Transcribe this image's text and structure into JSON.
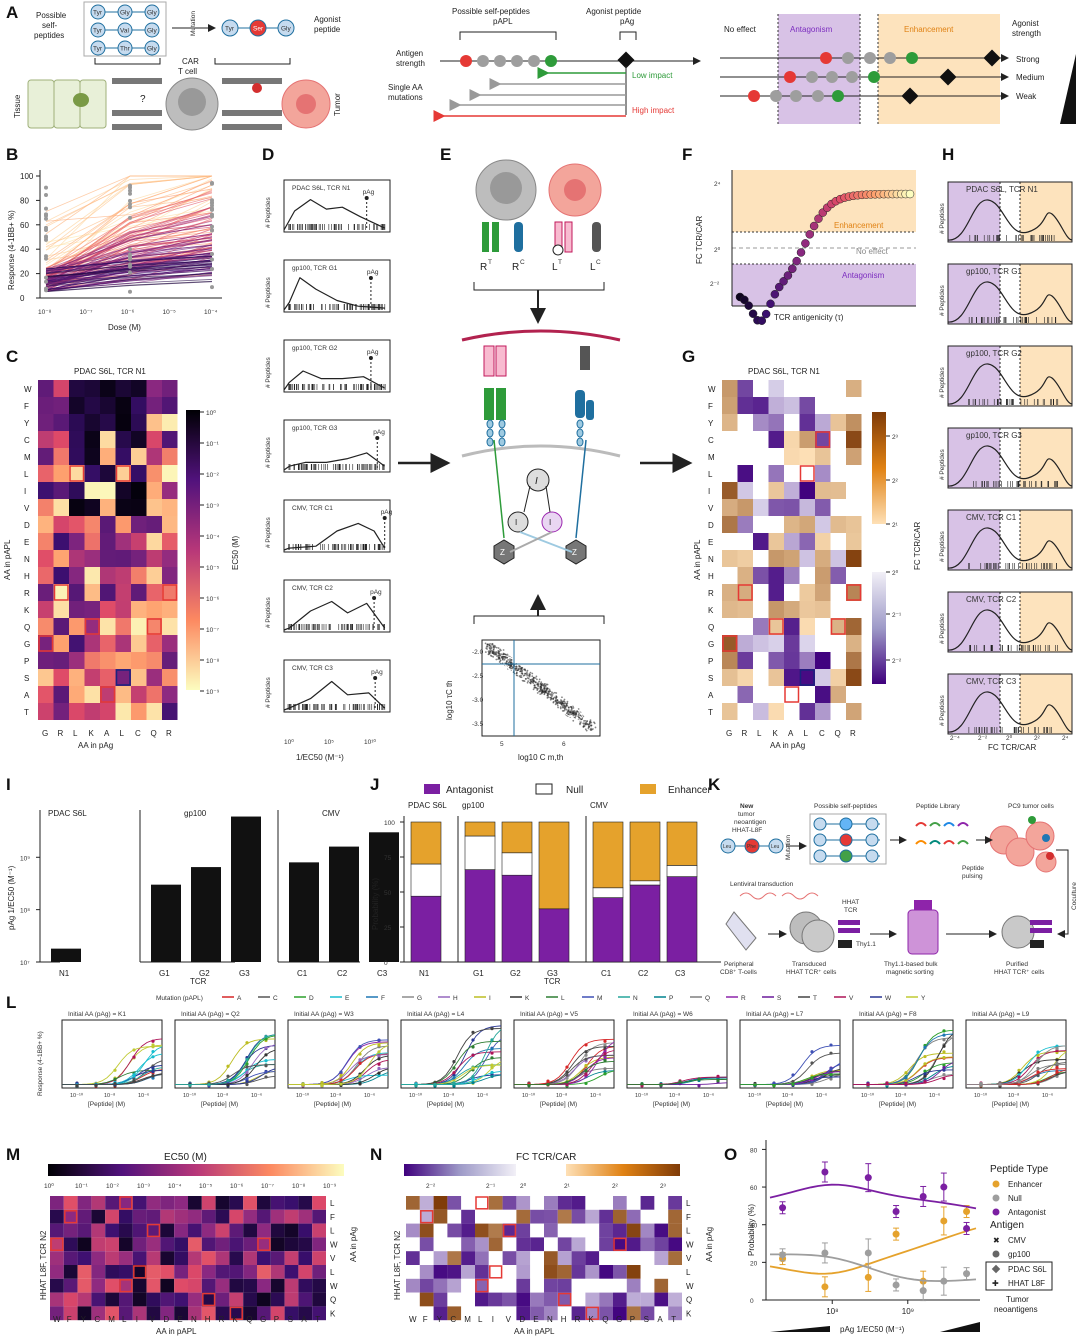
{
  "panels": {
    "A": "A",
    "B": "B",
    "C": "C",
    "D": "D",
    "E": "E",
    "F": "F",
    "G": "G",
    "H": "H",
    "I": "I",
    "J": "J",
    "K": "K",
    "L": "L",
    "M": "M",
    "N": "N",
    "O": "O"
  },
  "panelA": {
    "possible_self": "Possible",
    "possible_self2": "self-",
    "possible_self3": "peptides",
    "mutation": "Mutation",
    "agonist_peptide": "Agonist",
    "agonist_peptide2": "peptide",
    "car_tcell": "CAR",
    "car_tcell2": "T cell",
    "tissue": "Tissue",
    "tumor": "Tumor",
    "possible_self_papl": "Possible self-peptides",
    "papl": "pAPL",
    "agonist_pag": "Agonist peptide",
    "pag": "pAg",
    "antigen_strength": "Antigen",
    "antigen_strength2": "strength",
    "single_aa": "Single AA",
    "single_aa2": "mutations",
    "low_impact": "Low impact",
    "high_impact": "High impact",
    "no_effect": "No effect",
    "antagonism": "Antagonism",
    "enhancement": "Enhancement",
    "agonist_strength": "Agonist",
    "agonist_strength2": "strength",
    "strong": "Strong",
    "medium": "Medium",
    "weak": "Weak",
    "aa_top": [
      "Tyr",
      "Gly",
      "Gly"
    ],
    "aa_mid": [
      "Tyr",
      "Val",
      "Gly"
    ],
    "aa_bot": [
      "Tyr",
      "Thr",
      "Gly"
    ],
    "aa_ag": [
      "Tyr",
      "Ser",
      "Gly"
    ]
  },
  "panelB": {
    "ylabel": "Response (4-1BB+ %)",
    "xlabel": "Dose (M)",
    "yticks": [
      "0",
      "20",
      "40",
      "60",
      "80",
      "100"
    ],
    "xticks": [
      "10⁻⁸",
      "10⁻⁷",
      "10⁻⁶",
      "10⁻⁵",
      "10⁻⁴"
    ]
  },
  "panelC": {
    "title": "PDAC S6L, TCR N1",
    "ylabel": "AA in pAPL",
    "xlabel": "AA in pAg",
    "rows": [
      "W",
      "F",
      "Y",
      "C",
      "M",
      "L",
      "I",
      "V",
      "D",
      "E",
      "N",
      "H",
      "R",
      "K",
      "Q",
      "G",
      "P",
      "S",
      "A",
      "T"
    ],
    "cols": [
      "G",
      "R",
      "L",
      "K",
      "A",
      "L",
      "C",
      "Q",
      "R"
    ],
    "cbar_label": "EC50 (M)",
    "cbar_ticks": [
      "10⁰",
      "10⁻¹",
      "10⁻²",
      "10⁻³",
      "10⁻⁴",
      "10⁻⁵",
      "10⁻⁶",
      "10⁻⁷",
      "10⁻⁸",
      "10⁻⁹"
    ]
  },
  "panelD": {
    "ylabel": "# Peptides",
    "xlabel": "1/EC50 (M⁻¹)",
    "pag": "pAg",
    "xticks": [
      "10⁰",
      "10⁵",
      "10¹⁰"
    ],
    "titles": [
      "PDAC S6L, TCR N1",
      "gp100, TCR G1",
      "gp100, TCR G2",
      "gp100, TCR G3",
      "CMV, TCR C1",
      "CMV, TCR C2",
      "CMV, TCR C3"
    ]
  },
  "panelE": {
    "RT": "R",
    "RC": "R",
    "LT": "L",
    "LC": "L",
    "supT": "T",
    "supC": "C",
    "I": "I",
    "Z": "Z",
    "ylabel": "log10 τC th",
    "xlabel": "log10 C m,th",
    "yticks": [
      "-2.0",
      "-2.5",
      "-3.0",
      "-3.5"
    ],
    "xticks": [
      "5",
      "6"
    ]
  },
  "panelF": {
    "ylabel": "FC TCR/CAR",
    "xlabel": "TCR antigenicity (τ)",
    "enhancement": "Enhancement",
    "no_effect": "No effect",
    "antagonism": "Antagonism",
    "yticks": [
      "2⁴",
      "2⁰",
      "2⁻²"
    ]
  },
  "panelG": {
    "title": "PDAC S6L, TCR N1",
    "ylabel": "AA in pAPL",
    "xlabel": "AA in pAg",
    "cbar_label": "FC TCR/CAR",
    "cbar_ticks": [
      "2³",
      "2²",
      "2¹",
      "2⁰",
      "2⁻¹",
      "2⁻²"
    ]
  },
  "panelH": {
    "ylabel": "# Peptides",
    "xlabel": "FC TCR/CAR",
    "xticks": [
      "2⁻⁴",
      "2⁻²",
      "2⁰",
      "2²",
      "2⁴"
    ]
  },
  "panelI": {
    "ylabel": "pAg 1/EC50 (M⁻¹)",
    "xlabel": "TCR",
    "groups": [
      "PDAC S6L",
      "gp100",
      "CMV"
    ],
    "yticks": [
      "10⁷",
      "10⁸",
      "10⁹"
    ]
  },
  "panelJ": {
    "ylabel": "Probability (%)",
    "xlabel": "TCR",
    "legend": [
      "Antagonist",
      "Null",
      "Enhancer"
    ],
    "yticks": [
      "0",
      "25",
      "50",
      "75",
      "100"
    ]
  },
  "panelK": {
    "new_tumor": "New",
    "new_tumor2": "tumor",
    "new_tumor3": "neoantigen",
    "new_tumor4": "HHAT-L8F",
    "possible": "Possible self-peptides",
    "library": "Peptide Library",
    "pc9": "PC9 tumor cells",
    "mutation": "Mutation",
    "pulsing": "Peptide",
    "pulsing2": "pulsing",
    "lenti": "Lentiviral transduction",
    "coculture": "Coculture",
    "pbmc": "Peripheral",
    "pbmc2": "CD8⁺ T-cells",
    "transduced": "Transduced",
    "transduced2": "HHAT TCR⁺ cells",
    "sorting": "Thy1.1-based bulk",
    "sorting2": "magnetic sorting",
    "purified": "Purified",
    "purified2": "HHAT TCR⁺ cells",
    "hhat_tcr": "HHAT",
    "hhat_tcr2": "TCR",
    "thy": "Thy1.1"
  },
  "panelL": {
    "legend_title": "Mutation (pAPL)",
    "legend": [
      "A",
      "C",
      "D",
      "E",
      "F",
      "G",
      "H",
      "I",
      "K",
      "L",
      "M",
      "N",
      "P",
      "Q",
      "R",
      "S",
      "T",
      "V",
      "W",
      "Y"
    ],
    "legend_colors": [
      "#d62728",
      "#555555",
      "#2ca02c",
      "#17becf",
      "#1f77b4",
      "#8c8c8c",
      "#9467bd",
      "#bcbd22",
      "#333333",
      "#2e7d32",
      "#3f51b5",
      "#26a69a",
      "#00838f",
      "#7f7f7f",
      "#8e24aa",
      "#6a1b9a",
      "#444444",
      "#ad1457",
      "#283593",
      "#c0ca33"
    ],
    "titles": [
      "Initial AA (pAg) = K1",
      "Initial AA (pAg) = Q2",
      "Initial AA (pAg) = W3",
      "Initial AA (pAg) = L4",
      "Initial AA (pAg) = V5",
      "Initial AA (pAg) = W6",
      "Initial AA (pAg) = L7",
      "Initial AA (pAg) = F8",
      "Initial AA (pAg) = L9"
    ],
    "ylabel": "Response (4-1BB+ %)",
    "xlabel": "[Peptide] (M)",
    "xticks": [
      "10⁻¹⁰",
      "10⁻⁸",
      "10⁻⁶"
    ]
  },
  "panelM": {
    "cbar_label": "EC50 (M)",
    "cbar_ticks": [
      "10⁰",
      "10⁻¹",
      "10⁻²",
      "10⁻³",
      "10⁻⁴",
      "10⁻⁵",
      "10⁻⁶",
      "10⁻⁷",
      "10⁻⁸",
      "10⁻⁹"
    ],
    "ylabel": "HHAT L8F, TCR N2",
    "ylabel_right": "AA in pAg",
    "xlabel": "AA in pAPL",
    "cols": [
      "W",
      "F",
      "Y",
      "C",
      "M",
      "L",
      "I",
      "V",
      "D",
      "E",
      "N",
      "H",
      "R",
      "K",
      "Q",
      "G",
      "P",
      "S",
      "A",
      "T"
    ],
    "rows": [
      "L",
      "F",
      "L",
      "W",
      "V",
      "L",
      "W",
      "Q",
      "K"
    ]
  },
  "panelN": {
    "cbar_label": "FC TCR/CAR",
    "cbar_ticks": [
      "2⁻²",
      "2⁻¹",
      "2⁰",
      "2¹",
      "2²",
      "2³"
    ]
  },
  "panelO": {
    "ylabel": "Probability (%)",
    "xlabel": "pAg 1/EC50 (M⁻¹)",
    "yticks": [
      "0",
      "20",
      "40",
      "60",
      "80"
    ],
    "xticks": [
      "10⁸",
      "10⁹"
    ],
    "legend_title1": "Peptide Type",
    "legend_types": [
      "Enhancer",
      "Null",
      "Antagonist"
    ],
    "legend_title2": "Antigen",
    "legend_antigens": [
      "CMV",
      "gp100",
      "PDAC S6L",
      "HHAT L8F"
    ],
    "tumor_neo": "Tumor",
    "tumor_neo2": "neoantigens"
  },
  "chart_data": [
    {
      "type": "bar",
      "panel": "I",
      "categories": [
        "N1",
        "G1",
        "G2",
        "G3",
        "C1",
        "C2",
        "C3"
      ],
      "values": [
        18000000.0,
        300000000.0,
        650000000.0,
        6000000000.0,
        800000000.0,
        1600000000.0,
        3000000000.0
      ],
      "ylabel": "pAg 1/EC50 (M⁻¹)",
      "xlabel": "TCR",
      "ylim": [
        10000000.0,
        8000000000.0
      ],
      "log_y": true
    },
    {
      "type": "bar",
      "panel": "J",
      "categories": [
        "N1",
        "G1",
        "G2",
        "G3",
        "C1",
        "C2",
        "C3"
      ],
      "series": [
        {
          "name": "Antagonist",
          "values": [
            47,
            66,
            62,
            38,
            46,
            55,
            61
          ]
        },
        {
          "name": "Null",
          "values": [
            23,
            24,
            16,
            0,
            7,
            3,
            8
          ]
        },
        {
          "name": "Enhancer",
          "values": [
            30,
            10,
            22,
            62,
            47,
            42,
            31
          ]
        }
      ],
      "ylabel": "Probability (%)",
      "xlabel": "TCR",
      "ylim": [
        0,
        100
      ],
      "stacked": true
    },
    {
      "type": "scatter",
      "panel": "O",
      "series": [
        {
          "name": "Enhancer",
          "x": [
            22000000.0,
            80000000.0,
            300000000.0,
            700000000.0,
            1600000000.0,
            3000000000.0,
            6000000000.0
          ],
          "y": [
            22,
            7,
            12,
            35,
            10,
            42,
            47
          ]
        },
        {
          "name": "Null",
          "x": [
            22000000.0,
            80000000.0,
            300000000.0,
            700000000.0,
            1600000000.0,
            3000000000.0,
            6000000000.0
          ],
          "y": [
            24,
            25,
            25,
            8,
            5,
            10,
            14
          ]
        },
        {
          "name": "Antagonist",
          "x": [
            22000000.0,
            80000000.0,
            300000000.0,
            700000000.0,
            1600000000.0,
            3000000000.0,
            6000000000.0
          ],
          "y": [
            49,
            68,
            65,
            47,
            55,
            60,
            38
          ]
        }
      ],
      "ylabel": "Probability (%)",
      "xlabel": "pAg 1/EC50 (M⁻¹)",
      "ylim": [
        0,
        85
      ],
      "log_x": true
    }
  ]
}
